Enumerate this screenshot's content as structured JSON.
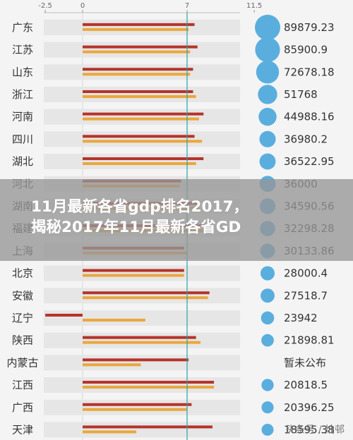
{
  "overlay": {
    "line1": "11月最新各省gdp排名2017，",
    "line2": "揭秘2017年11月最新各省GD"
  },
  "watermark": "头条号 / 灿邨",
  "chart_data": {
    "type": "bar",
    "xticks": [
      -2.5,
      0,
      7,
      11.5
    ],
    "xlim": [
      -3,
      12.5
    ],
    "reference_line": 7,
    "colors": {
      "red": "#b5332b",
      "orange": "#eaa73c",
      "blue": "#5aaede",
      "line": "#2aa4a4"
    },
    "categories": [
      "广东",
      "江苏",
      "山东",
      "浙江",
      "河南",
      "四川",
      "湖北",
      "河北",
      "湖南",
      "福建",
      "上海",
      "北京",
      "安徽",
      "辽宁",
      "陕西",
      "内蒙古",
      "江西",
      "广西",
      "天津"
    ],
    "series": [
      {
        "values": [
          7.5,
          7.7,
          7.4,
          7.4,
          8.1,
          7.5,
          8.1,
          6.6,
          7.9,
          8.2,
          6.8,
          6.8,
          8.5,
          -2.5,
          7.6,
          7.1,
          8.8,
          7.3,
          8.7
        ]
      },
      {
        "values": [
          7.1,
          7.2,
          7.2,
          7.6,
          7.8,
          8.0,
          7.6,
          6.5,
          7.8,
          8.1,
          7.0,
          6.8,
          8.4,
          4.2,
          7.9,
          3.9,
          8.8,
          7.0,
          3.6
        ]
      }
    ],
    "gdp_values": [
      "89879.23",
      "85900.9",
      "72678.18",
      "51768",
      "44988.16",
      "36980.2",
      "36522.95",
      "36000",
      "34590.56",
      "32298.28",
      "30133.86",
      "28000.4",
      "27518.7",
      "23942",
      "21898.81",
      "暂未公布",
      "20818.5",
      "20396.25",
      "18595.38"
    ],
    "bubble_relative_size": [
      89879.23,
      85900.9,
      72678.18,
      51768,
      44988.16,
      36980.2,
      36522.95,
      36000,
      34590.56,
      32298.28,
      30133.86,
      28000.4,
      27518.7,
      23942,
      21898.81,
      0,
      20818.5,
      20396.25,
      18595.38
    ]
  }
}
